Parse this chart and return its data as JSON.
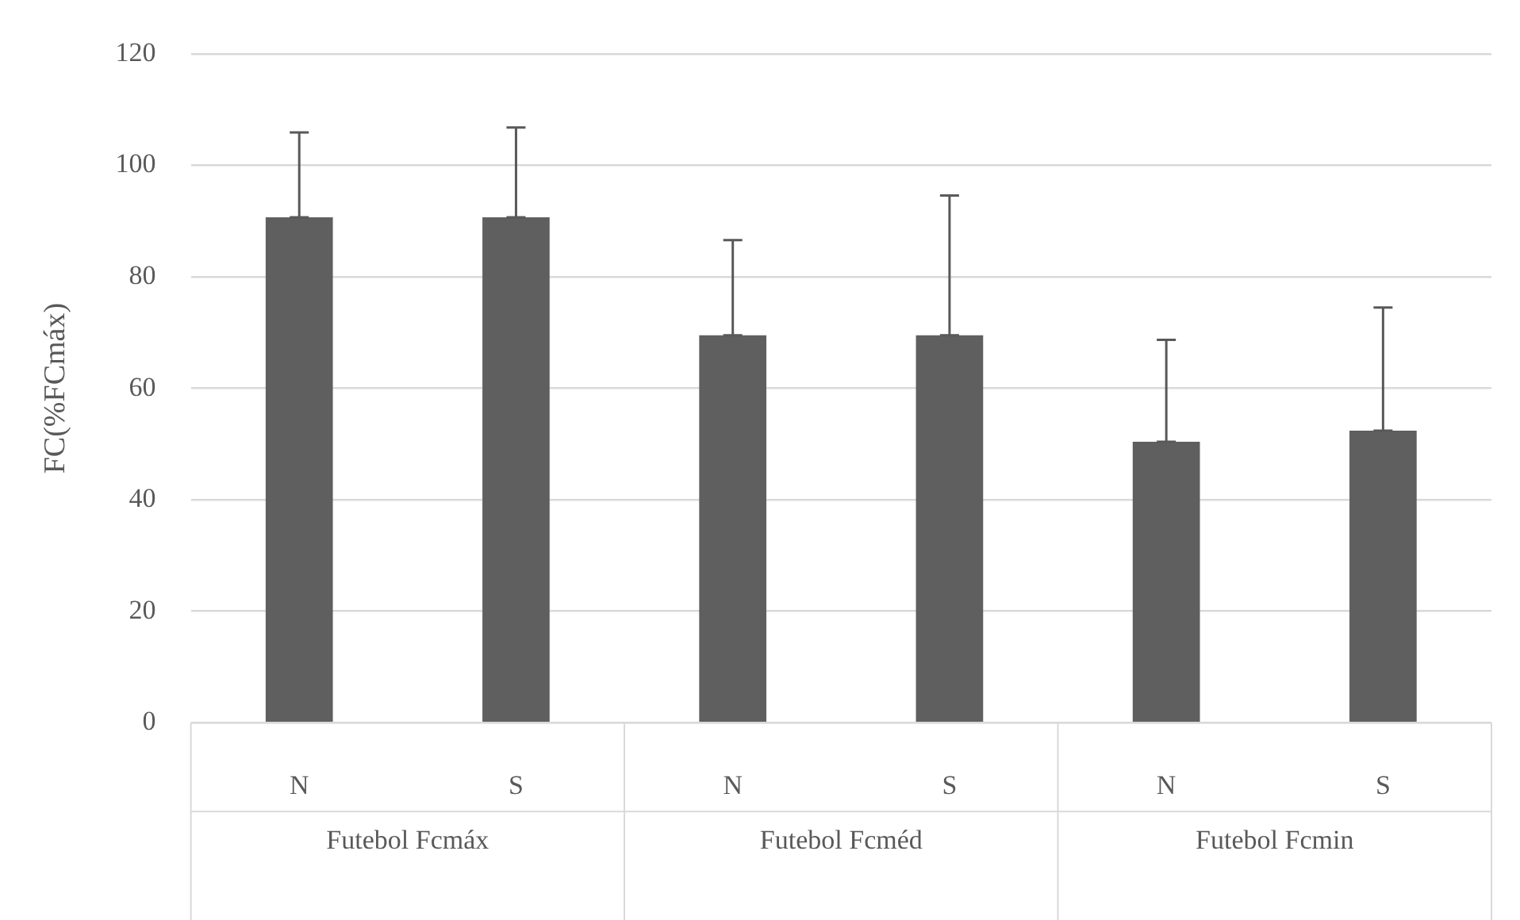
{
  "chart_data": {
    "type": "bar",
    "ylabel": "FC(%FCmáx)",
    "categories": [
      "N",
      "S",
      "N",
      "S",
      "N",
      "S"
    ],
    "values": [
      90.7,
      90.7,
      69.5,
      69.5,
      50.4,
      52.4
    ],
    "errors": [
      [
        90.7,
        105.9
      ],
      [
        90.7,
        106.8
      ],
      [
        69.5,
        86.6
      ],
      [
        69.5,
        94.6
      ],
      [
        50.4,
        68.7
      ],
      [
        52.4,
        74.5
      ]
    ],
    "color": "#5f5f5f",
    "ylim": [
      0,
      120
    ],
    "yticks": [
      0,
      20,
      40,
      60,
      80,
      100,
      120
    ],
    "grid": "y",
    "legend": false,
    "annotations": [
      "Futebol Fcmáx",
      "Futebol Fcméd",
      "Futebol Fcmin"
    ]
  }
}
